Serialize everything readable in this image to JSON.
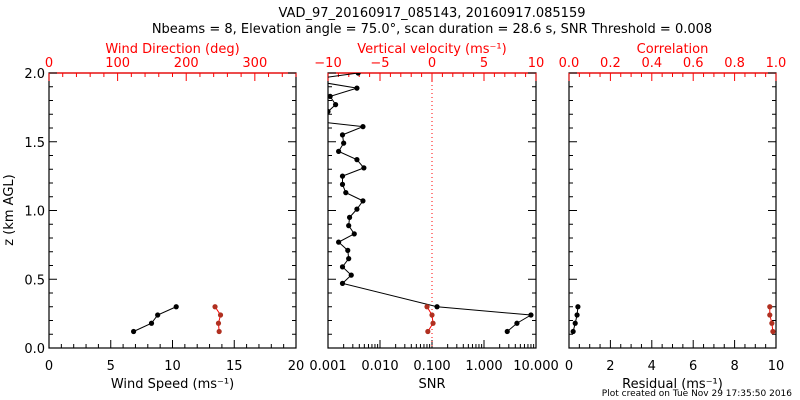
{
  "title": "VAD_97_20160917_085143, 20160917.085159",
  "subtitle": "Nbeams = 8, Elevation angle = 75.0°, scan duration = 28.6 s, SNR Threshold = 0.008",
  "footer": "Plot created on Tue Nov 29 17:35:50 2016",
  "colors": {
    "primary": "#000000",
    "secondary": "#ff0000",
    "secondary_marker": "#b03020"
  },
  "chart_data": [
    {
      "type": "line",
      "ylabel": "z (km AGL)",
      "ylim": [
        0,
        2
      ],
      "yticks": [
        "0.0",
        "0.5",
        "1.0",
        "1.5",
        "2.0"
      ],
      "xlabel": "Wind Speed (ms⁻¹)",
      "xlim": [
        0,
        20
      ],
      "xticks": [
        "0",
        "5",
        "10",
        "15",
        "20"
      ],
      "top_xlabel": "Wind Direction (deg)",
      "top_xlim": [
        0,
        360
      ],
      "top_xticks": [
        "0",
        "100",
        "200",
        "300"
      ],
      "series": [
        {
          "name": "Wind Speed",
          "axis": "bottom",
          "z": [
            0.12,
            0.18,
            0.24,
            0.3
          ],
          "values": [
            6.85,
            8.3,
            8.8,
            10.3
          ]
        },
        {
          "name": "Wind Direction",
          "axis": "top",
          "z": [
            0.12,
            0.18,
            0.24,
            0.3
          ],
          "values": [
            248,
            247,
            250,
            242
          ]
        }
      ]
    },
    {
      "type": "line",
      "ylim": [
        0,
        2
      ],
      "xlabel": "SNR",
      "xscale": "log",
      "xlim": [
        0.001,
        10
      ],
      "xticks": [
        "0.001",
        "0.010",
        "0.100",
        "1.000",
        "10.000"
      ],
      "top_xlabel": "Vertical velocity (ms⁻¹)",
      "top_xlim": [
        -10,
        10
      ],
      "top_xticks": [
        "−10",
        "−5",
        "0",
        "5",
        "10"
      ],
      "series": [
        {
          "name": "SNR",
          "axis": "bottom",
          "z": [
            0.12,
            0.18,
            0.24,
            0.3,
            0.47,
            0.53,
            0.59,
            0.65,
            0.71,
            0.77,
            0.83,
            0.89,
            0.95,
            1.01,
            1.07,
            1.13,
            1.19,
            1.25,
            1.31,
            1.37,
            1.43,
            1.49,
            1.55,
            1.61,
            1.66,
            1.72,
            1.77,
            1.83,
            1.89,
            1.95,
            2.0
          ],
          "values": [
            2.8,
            4.3,
            8.0,
            0.125,
            0.0019,
            0.0028,
            0.0019,
            0.0025,
            0.0024,
            0.0016,
            0.0032,
            0.0025,
            0.0026,
            0.0036,
            0.0047,
            0.0022,
            0.0019,
            0.0019,
            0.0049,
            0.0036,
            0.0016,
            0.002,
            0.0019,
            0.0047,
            0.0003,
            0.001,
            0.0014,
            0.0011,
            0.0036,
            0.0004,
            0.0038
          ]
        },
        {
          "name": "Vertical velocity",
          "axis": "top",
          "z": [
            0.12,
            0.18,
            0.24,
            0.3
          ],
          "values": [
            -0.4,
            0.1,
            0.0,
            -0.48
          ]
        }
      ]
    },
    {
      "type": "line",
      "ylim": [
        0,
        2
      ],
      "xlabel": "Residual (ms⁻¹)",
      "xlim": [
        0,
        10
      ],
      "xticks": [
        "0",
        "2",
        "4",
        "6",
        "8",
        "10"
      ],
      "top_xlabel": "Correlation",
      "top_xlim": [
        0,
        1
      ],
      "top_xticks": [
        "0.0",
        "0.2",
        "0.4",
        "0.6",
        "0.8",
        "1.0"
      ],
      "series": [
        {
          "name": "Residual",
          "axis": "bottom",
          "z": [
            0.12,
            0.18,
            0.24,
            0.3
          ],
          "values": [
            0.2,
            0.3,
            0.39,
            0.43
          ]
        },
        {
          "name": "Correlation",
          "axis": "top",
          "z": [
            0.12,
            0.18,
            0.24,
            0.3
          ],
          "values": [
            0.985,
            0.98,
            0.97,
            0.97
          ]
        }
      ]
    }
  ]
}
